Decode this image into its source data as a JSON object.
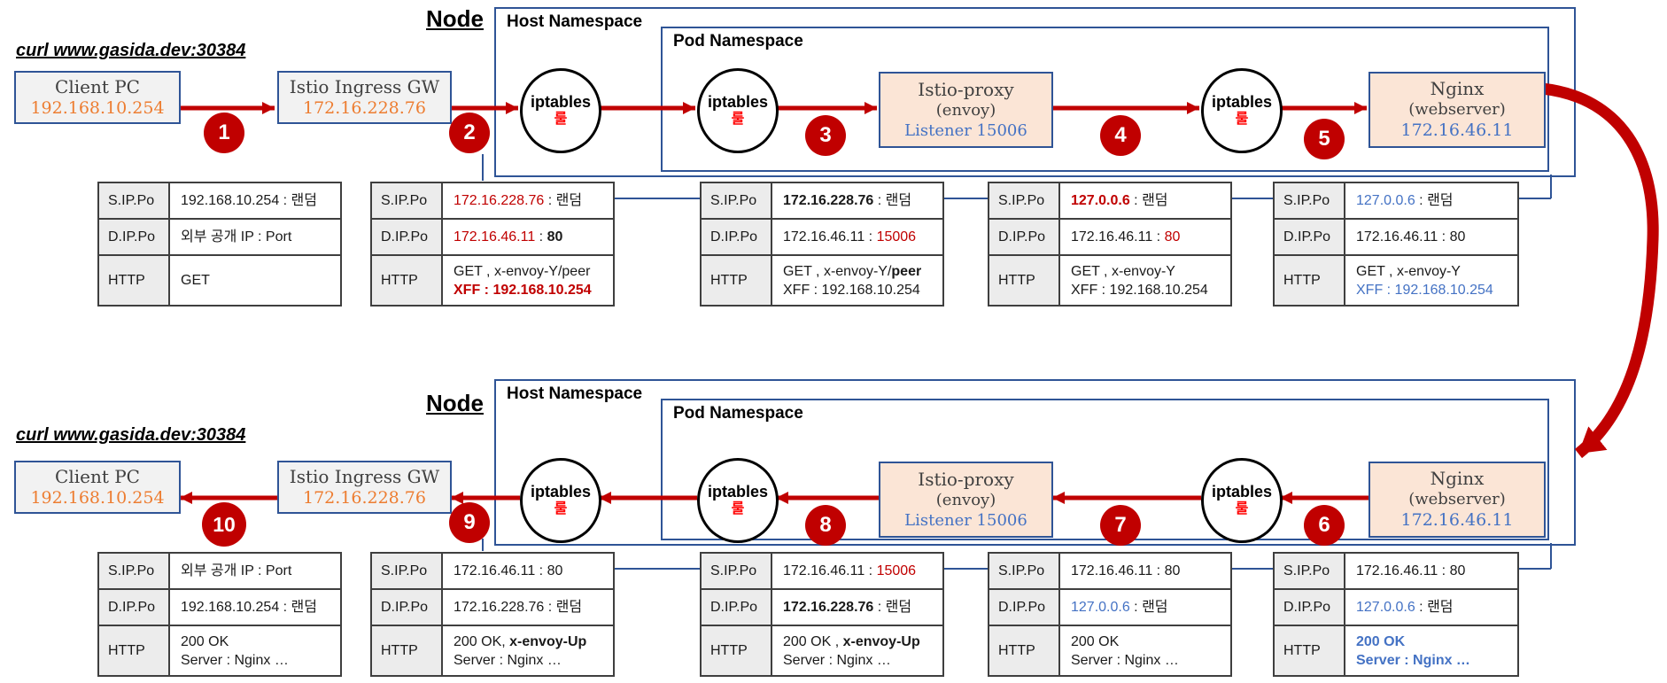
{
  "colors": {
    "red": "#c00000",
    "blue": "#4472c4",
    "navy": "#2f5496",
    "orange": "#ed7d31",
    "boxgrey": "#f2f2f2",
    "boxpeach": "#fbe5d6",
    "hdrgrey": "#ececec"
  },
  "sections": [
    {
      "id": "request-path",
      "node_label": "Node",
      "curl_label": "curl www.gasida.dev:30384",
      "host_ns_label": "Host Namespace",
      "pod_ns_label": "Pod Namespace",
      "iptables_label": "iptables",
      "rule_label": "룰",
      "boxes": {
        "client_pc": {
          "title": "Client PC",
          "ip": "192.168.10.254"
        },
        "istio_gw": {
          "title": "Istio Ingress GW",
          "ip": "172.16.228.76"
        },
        "istio_proxy": {
          "title": "Istio-proxy",
          "subtitle": "(envoy)",
          "listener": "Listener 15006"
        },
        "nginx": {
          "title": "Nginx",
          "subtitle": "(webserver)",
          "ip": "172.16.46.11"
        }
      },
      "steps": [
        "1",
        "2",
        "3",
        "4",
        "5"
      ],
      "tables": [
        {
          "rows": [
            {
              "label": "S.IP.Po",
              "lines": [
                [
                  {
                    "t": "192.168.10.254 : 랜덤"
                  }
                ]
              ]
            },
            {
              "label": "D.IP.Po",
              "lines": [
                [
                  {
                    "t": "외부 공개 IP : Port"
                  }
                ]
              ]
            },
            {
              "label": "HTTP",
              "lines": [
                [
                  {
                    "t": "GET"
                  }
                ]
              ]
            }
          ]
        },
        {
          "rows": [
            {
              "label": "S.IP.Po",
              "lines": [
                [
                  {
                    "t": "172.16.228.76",
                    "c": "red"
                  },
                  {
                    "t": " : 랜덤"
                  }
                ]
              ]
            },
            {
              "label": "D.IP.Po",
              "lines": [
                [
                  {
                    "t": "172.16.46.11",
                    "c": "red"
                  },
                  {
                    "t": " : "
                  },
                  {
                    "t": "80",
                    "c": "bold"
                  }
                ]
              ]
            },
            {
              "label": "HTTP",
              "lines": [
                [
                  {
                    "t": "GET , x-envoy-Y/peer"
                  }
                ],
                [
                  {
                    "t": "XFF : 192.168.10.254",
                    "c": "red bold"
                  }
                ]
              ]
            }
          ]
        },
        {
          "rows": [
            {
              "label": "S.IP.Po",
              "lines": [
                [
                  {
                    "t": "172.16.228.76",
                    "c": "bold"
                  },
                  {
                    "t": " : 랜덤"
                  }
                ]
              ]
            },
            {
              "label": "D.IP.Po",
              "lines": [
                [
                  {
                    "t": "172.16.46.11 : "
                  },
                  {
                    "t": "15006",
                    "c": "red"
                  }
                ]
              ]
            },
            {
              "label": "HTTP",
              "lines": [
                [
                  {
                    "t": "GET , x-envoy-Y/"
                  },
                  {
                    "t": "peer",
                    "c": "bold"
                  }
                ],
                [
                  {
                    "t": "XFF : 192.168.10.254"
                  }
                ]
              ]
            }
          ]
        },
        {
          "rows": [
            {
              "label": "S.IP.Po",
              "lines": [
                [
                  {
                    "t": "127.0.0.6",
                    "c": "red bold"
                  },
                  {
                    "t": " : 랜덤"
                  }
                ]
              ]
            },
            {
              "label": "D.IP.Po",
              "lines": [
                [
                  {
                    "t": "172.16.46.11 : "
                  },
                  {
                    "t": "80",
                    "c": "red"
                  }
                ]
              ]
            },
            {
              "label": "HTTP",
              "lines": [
                [
                  {
                    "t": "GET , x-envoy-Y"
                  }
                ],
                [
                  {
                    "t": "XFF : 192.168.10.254"
                  }
                ]
              ]
            }
          ]
        },
        {
          "rows": [
            {
              "label": "S.IP.Po",
              "lines": [
                [
                  {
                    "t": "127.0.0.6",
                    "c": "blue"
                  },
                  {
                    "t": " : 랜덤"
                  }
                ]
              ]
            },
            {
              "label": "D.IP.Po",
              "lines": [
                [
                  {
                    "t": "172.16.46.11 : 80"
                  }
                ]
              ]
            },
            {
              "label": "HTTP",
              "lines": [
                [
                  {
                    "t": "GET , x-envoy-Y"
                  }
                ],
                [
                  {
                    "t": "XFF : 192.168.10.254",
                    "c": "blue"
                  }
                ]
              ]
            }
          ]
        }
      ]
    },
    {
      "id": "response-path",
      "node_label": "Node",
      "curl_label": "curl www.gasida.dev:30384",
      "host_ns_label": "Host Namespace",
      "pod_ns_label": "Pod Namespace",
      "iptables_label": "iptables",
      "rule_label": "룰",
      "boxes": {
        "client_pc": {
          "title": "Client PC",
          "ip": "192.168.10.254"
        },
        "istio_gw": {
          "title": "Istio Ingress GW",
          "ip": "172.16.228.76"
        },
        "istio_proxy": {
          "title": "Istio-proxy",
          "subtitle": "(envoy)",
          "listener": "Listener 15006"
        },
        "nginx": {
          "title": "Nginx",
          "subtitle": "(webserver)",
          "ip": "172.16.46.11"
        }
      },
      "steps": [
        "10",
        "9",
        "8",
        "7",
        "6"
      ],
      "tables": [
        {
          "rows": [
            {
              "label": "S.IP.Po",
              "lines": [
                [
                  {
                    "t": "외부 공개 IP : Port"
                  }
                ]
              ]
            },
            {
              "label": "D.IP.Po",
              "lines": [
                [
                  {
                    "t": "192.168.10.254 : 랜덤"
                  }
                ]
              ]
            },
            {
              "label": "HTTP",
              "lines": [
                [
                  {
                    "t": "200 OK"
                  }
                ],
                [
                  {
                    "t": "Server : Nginx …"
                  }
                ]
              ]
            }
          ]
        },
        {
          "rows": [
            {
              "label": "S.IP.Po",
              "lines": [
                [
                  {
                    "t": "172.16.46.11 : 80"
                  }
                ]
              ]
            },
            {
              "label": "D.IP.Po",
              "lines": [
                [
                  {
                    "t": "172.16.228.76 : 랜덤"
                  }
                ]
              ]
            },
            {
              "label": "HTTP",
              "lines": [
                [
                  {
                    "t": "200 OK, "
                  },
                  {
                    "t": "x-envoy-Up",
                    "c": "bold"
                  }
                ],
                [
                  {
                    "t": "Server : Nginx …"
                  }
                ]
              ]
            }
          ]
        },
        {
          "rows": [
            {
              "label": "S.IP.Po",
              "lines": [
                [
                  {
                    "t": "172.16.46.11 : "
                  },
                  {
                    "t": "15006",
                    "c": "red"
                  }
                ]
              ]
            },
            {
              "label": "D.IP.Po",
              "lines": [
                [
                  {
                    "t": "172.16.228.76",
                    "c": "bold"
                  },
                  {
                    "t": " : 랜덤"
                  }
                ]
              ]
            },
            {
              "label": "HTTP",
              "lines": [
                [
                  {
                    "t": "200 OK , "
                  },
                  {
                    "t": "x-envoy-Up",
                    "c": "bold"
                  }
                ],
                [
                  {
                    "t": "Server : Nginx …"
                  }
                ]
              ]
            }
          ]
        },
        {
          "rows": [
            {
              "label": "S.IP.Po",
              "lines": [
                [
                  {
                    "t": "172.16.46.11 : 80"
                  }
                ]
              ]
            },
            {
              "label": "D.IP.Po",
              "lines": [
                [
                  {
                    "t": "127.0.0.6",
                    "c": "blue"
                  },
                  {
                    "t": " : 랜덤"
                  }
                ]
              ]
            },
            {
              "label": "HTTP",
              "lines": [
                [
                  {
                    "t": "200 OK"
                  }
                ],
                [
                  {
                    "t": "Server : Nginx …"
                  }
                ]
              ]
            }
          ]
        },
        {
          "rows": [
            {
              "label": "S.IP.Po",
              "lines": [
                [
                  {
                    "t": "172.16.46.11 : 80"
                  }
                ]
              ]
            },
            {
              "label": "D.IP.Po",
              "lines": [
                [
                  {
                    "t": "127.0.0.6",
                    "c": "blue"
                  },
                  {
                    "t": " : 랜덤"
                  }
                ]
              ]
            },
            {
              "label": "HTTP",
              "lines": [
                [
                  {
                    "t": "200 OK",
                    "c": "blue bold"
                  }
                ],
                [
                  {
                    "t": "Server : Nginx …",
                    "c": "blue bold"
                  }
                ]
              ]
            }
          ]
        }
      ]
    }
  ]
}
